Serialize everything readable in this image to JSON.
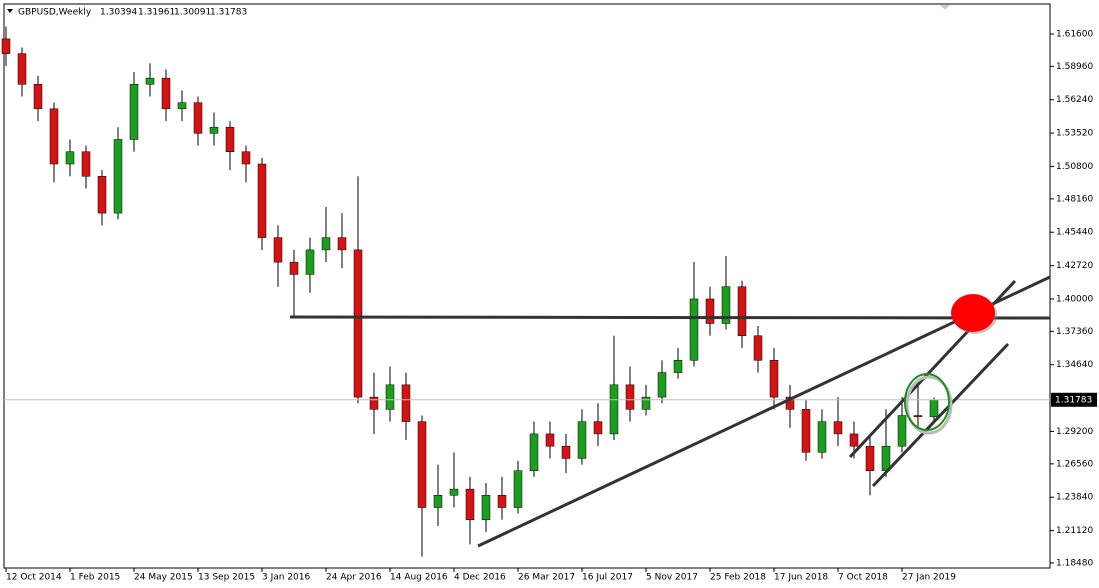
{
  "chart_data": {
    "type": "candlestick",
    "symbol": "GBPUSD,Weekly",
    "categories": [
      "12 Oct 2014",
      null,
      null,
      null,
      "1 Feb 2015",
      null,
      null,
      null,
      "24 May 2015",
      null,
      null,
      null,
      "13 Sep 2015",
      null,
      null,
      null,
      "3 Jan 2016",
      null,
      null,
      null,
      "24 Apr 2016",
      null,
      null,
      null,
      "14 Aug 2016",
      null,
      null,
      null,
      "4 Dec 2016",
      null,
      null,
      null,
      "26 Mar 2017",
      null,
      null,
      null,
      "16 Jul 2017",
      null,
      null,
      null,
      "5 Nov 2017",
      null,
      null,
      null,
      "25 Feb 2018",
      null,
      null,
      null,
      "17 Jun 2018",
      null,
      null,
      null,
      "7 Oct 2018",
      null,
      null,
      null,
      "27 Jan 2019",
      null,
      null
    ],
    "open": [
      1.612,
      1.6,
      1.575,
      1.555,
      1.51,
      1.52,
      1.5,
      1.47,
      1.53,
      1.575,
      1.58,
      1.555,
      1.56,
      1.535,
      1.54,
      1.52,
      1.51,
      1.45,
      1.43,
      1.42,
      1.44,
      1.45,
      1.44,
      1.32,
      1.31,
      1.33,
      1.3,
      1.23,
      1.24,
      1.245,
      1.22,
      1.24,
      1.23,
      1.26,
      1.29,
      1.28,
      1.27,
      1.3,
      1.29,
      1.33,
      1.31,
      1.32,
      1.34,
      1.35,
      1.4,
      1.38,
      1.41,
      1.37,
      1.35,
      1.32,
      1.31,
      1.275,
      1.3,
      1.29,
      1.28,
      1.26,
      1.28,
      1.305,
      1.30394
    ],
    "high": [
      1.622,
      1.605,
      1.582,
      1.56,
      1.53,
      1.525,
      1.505,
      1.54,
      1.585,
      1.592,
      1.587,
      1.57,
      1.565,
      1.552,
      1.545,
      1.525,
      1.515,
      1.46,
      1.44,
      1.45,
      1.475,
      1.47,
      1.5,
      1.34,
      1.345,
      1.34,
      1.305,
      1.265,
      1.275,
      1.255,
      1.25,
      1.255,
      1.268,
      1.3,
      1.3,
      1.29,
      1.31,
      1.315,
      1.37,
      1.345,
      1.33,
      1.35,
      1.36,
      1.43,
      1.41,
      1.435,
      1.415,
      1.378,
      1.36,
      1.33,
      1.318,
      1.31,
      1.32,
      1.3,
      1.29,
      1.31,
      1.32,
      1.335,
      1.31961
    ],
    "low": [
      1.59,
      1.565,
      1.545,
      1.495,
      1.5,
      1.49,
      1.46,
      1.465,
      1.52,
      1.565,
      1.545,
      1.545,
      1.525,
      1.525,
      1.505,
      1.495,
      1.44,
      1.41,
      1.385,
      1.405,
      1.43,
      1.425,
      1.315,
      1.29,
      1.3,
      1.285,
      1.19,
      1.215,
      1.23,
      1.2,
      1.21,
      1.22,
      1.225,
      1.255,
      1.27,
      1.258,
      1.265,
      1.28,
      1.285,
      1.3,
      1.305,
      1.315,
      1.335,
      1.345,
      1.37,
      1.375,
      1.36,
      1.34,
      1.31,
      1.295,
      1.268,
      1.27,
      1.28,
      1.27,
      1.24,
      1.255,
      1.275,
      1.295,
      1.30091
    ],
    "close": [
      1.6,
      1.575,
      1.555,
      1.51,
      1.52,
      1.5,
      1.47,
      1.53,
      1.575,
      1.58,
      1.555,
      1.56,
      1.535,
      1.54,
      1.52,
      1.51,
      1.45,
      1.43,
      1.42,
      1.44,
      1.45,
      1.44,
      1.32,
      1.31,
      1.33,
      1.3,
      1.23,
      1.24,
      1.245,
      1.22,
      1.24,
      1.23,
      1.26,
      1.29,
      1.28,
      1.27,
      1.3,
      1.29,
      1.33,
      1.31,
      1.32,
      1.34,
      1.35,
      1.4,
      1.38,
      1.41,
      1.37,
      1.35,
      1.32,
      1.31,
      1.275,
      1.3,
      1.29,
      1.28,
      1.26,
      1.28,
      1.305,
      1.30394,
      1.31783
    ],
    "up_color": "#1e9e1e",
    "down_color": "#d41414",
    "ylim": [
      1.1807,
      1.6437
    ],
    "yticks": [
      {
        "value": 1.616,
        "label": "1.61600"
      },
      {
        "value": 1.5896,
        "label": "1.58960"
      },
      {
        "value": 1.5624,
        "label": "1.56240"
      },
      {
        "value": 1.5352,
        "label": "1.53520"
      },
      {
        "value": 1.508,
        "label": "1.50800"
      },
      {
        "value": 1.4816,
        "label": "1.48160"
      },
      {
        "value": 1.4544,
        "label": "1.45440"
      },
      {
        "value": 1.4272,
        "label": "1.42720"
      },
      {
        "value": 1.4,
        "label": "1.40000"
      },
      {
        "value": 1.3736,
        "label": "1.37360"
      },
      {
        "value": 1.3464,
        "label": "1.34640"
      },
      {
        "value": 1.292,
        "label": "1.29200"
      },
      {
        "value": 1.2656,
        "label": "1.26560"
      },
      {
        "value": 1.2384,
        "label": "1.23840"
      },
      {
        "value": 1.2112,
        "label": "1.21120"
      },
      {
        "value": 1.1848,
        "label": "1.18480"
      }
    ]
  }
}
